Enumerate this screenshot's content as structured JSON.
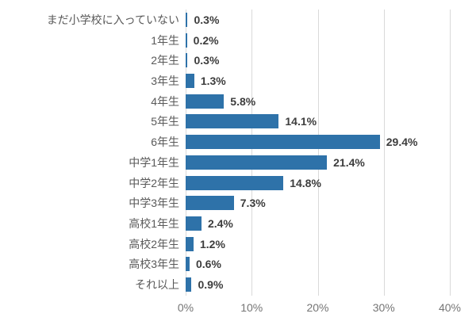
{
  "chart_data": {
    "type": "bar",
    "orientation": "horizontal",
    "title": "",
    "xlabel": "",
    "ylabel": "",
    "categories": [
      "まだ小学校に入っていない",
      "1年生",
      "2年生",
      "3年生",
      "4年生",
      "5年生",
      "6年生",
      "中学1年生",
      "中学2年生",
      "中学3年生",
      "高校1年生",
      "高校2年生",
      "高校3年生",
      "それ以上"
    ],
    "values": [
      0.3,
      0.2,
      0.3,
      1.3,
      5.8,
      14.1,
      29.4,
      21.4,
      14.8,
      7.3,
      2.4,
      1.2,
      0.6,
      0.9
    ],
    "value_labels": [
      "0.3%",
      "0.2%",
      "0.3%",
      "1.3%",
      "5.8%",
      "14.1%",
      "29.4%",
      "21.4%",
      "14.8%",
      "7.3%",
      "2.4%",
      "1.2%",
      "0.6%",
      "0.9%"
    ],
    "xlim": [
      0,
      40
    ],
    "x_ticks": [
      {
        "value": 0,
        "label": "0%"
      },
      {
        "value": 10,
        "label": "10%"
      },
      {
        "value": 20,
        "label": "20%"
      },
      {
        "value": 30,
        "label": "30%"
      },
      {
        "value": 40,
        "label": "40%"
      }
    ],
    "grid": true,
    "legend": "none",
    "colors": {
      "bar": "#2e72a9",
      "gridline": "#d9d9d9",
      "category_label": "#595959",
      "value_label": "#3d3d3d",
      "axis_label": "#757575"
    }
  }
}
